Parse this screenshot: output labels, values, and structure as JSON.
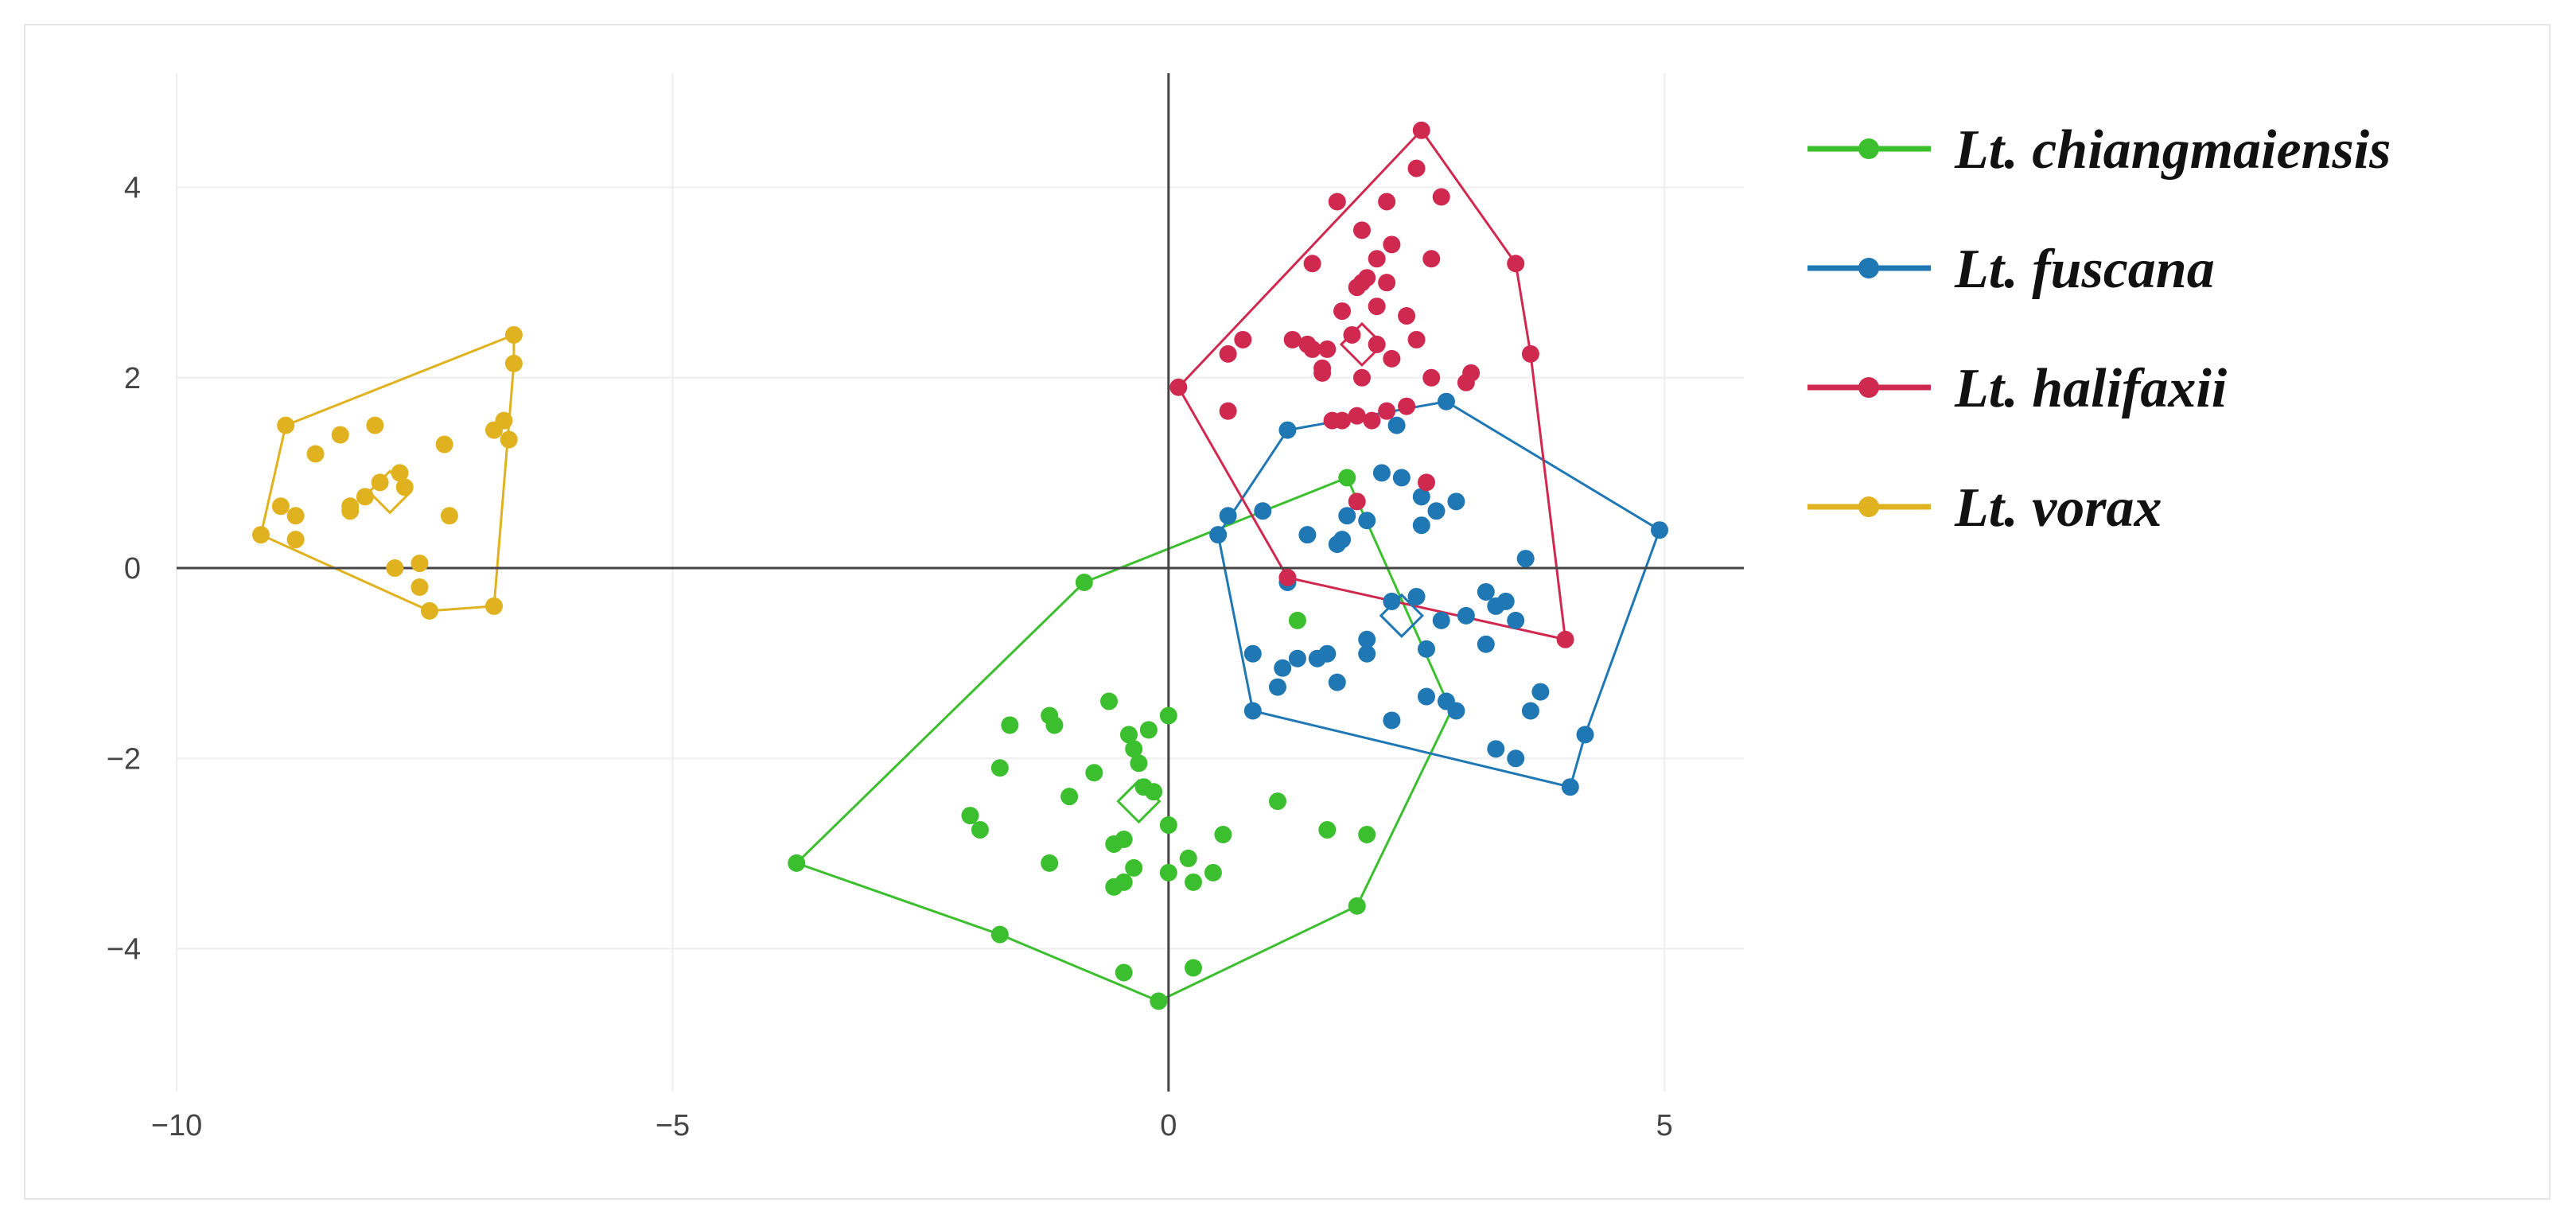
{
  "chart_data": {
    "type": "scatter",
    "title": "",
    "xlabel": "",
    "ylabel": "",
    "xlim": [
      -10,
      5.8
    ],
    "ylim": [
      -5.5,
      5.2
    ],
    "x_ticks": [
      -10,
      -5,
      0,
      5
    ],
    "y_ticks": [
      -4,
      -2,
      0,
      2,
      4
    ],
    "x_tick_labels": [
      "−10",
      "−5",
      "0",
      "5"
    ],
    "y_tick_labels": [
      "−4",
      "−2",
      "0",
      "2",
      "4"
    ],
    "grid": true,
    "zero_lines": true,
    "legend_position": "top-right",
    "series": [
      {
        "name": "Lt. chiangmaiensis",
        "color": "#3cbf2e",
        "points": [
          [
            1.8,
            0.95
          ],
          [
            1.3,
            -0.55
          ],
          [
            -0.85,
            -0.15
          ],
          [
            -2.0,
            -2.6
          ],
          [
            -1.9,
            -2.75
          ],
          [
            -1.7,
            -2.1
          ],
          [
            -1.6,
            -1.65
          ],
          [
            -1.2,
            -1.55
          ],
          [
            -1.15,
            -1.65
          ],
          [
            -1.0,
            -2.4
          ],
          [
            -0.75,
            -2.15
          ],
          [
            -0.6,
            -1.4
          ],
          [
            -0.4,
            -1.75
          ],
          [
            -0.35,
            -1.9
          ],
          [
            -0.3,
            -2.05
          ],
          [
            -0.25,
            -2.3
          ],
          [
            -0.15,
            -2.35
          ],
          [
            0.0,
            -1.55
          ],
          [
            -0.2,
            -1.7
          ],
          [
            -0.55,
            -2.9
          ],
          [
            -0.45,
            -2.85
          ],
          [
            -0.45,
            -3.3
          ],
          [
            -0.35,
            -3.15
          ],
          [
            0.0,
            -2.7
          ],
          [
            0.0,
            -3.2
          ],
          [
            0.2,
            -3.05
          ],
          [
            0.25,
            -3.3
          ],
          [
            0.45,
            -3.2
          ],
          [
            0.55,
            -2.8
          ],
          [
            -1.2,
            -3.1
          ],
          [
            -0.55,
            -3.35
          ],
          [
            1.1,
            -2.45
          ],
          [
            1.6,
            -2.75
          ],
          [
            2.0,
            -2.8
          ],
          [
            -3.75,
            -3.1
          ],
          [
            -1.7,
            -3.85
          ],
          [
            -0.45,
            -4.25
          ],
          [
            0.25,
            -4.2
          ],
          [
            -0.1,
            -4.55
          ],
          [
            1.9,
            -3.55
          ]
        ],
        "hull": [
          [
            1.8,
            0.95
          ],
          [
            2.85,
            -1.5
          ],
          [
            1.9,
            -3.55
          ],
          [
            -0.1,
            -4.55
          ],
          [
            -1.7,
            -3.85
          ],
          [
            -3.75,
            -3.1
          ],
          [
            -0.85,
            -0.15
          ]
        ],
        "centroid": [
          -0.3,
          -2.45
        ]
      },
      {
        "name": "Lt. fuscana",
        "color": "#1f77b4",
        "points": [
          [
            2.8,
            1.75
          ],
          [
            2.3,
            1.5
          ],
          [
            1.2,
            1.45
          ],
          [
            0.5,
            0.35
          ],
          [
            0.6,
            0.55
          ],
          [
            0.95,
            0.6
          ],
          [
            1.4,
            0.35
          ],
          [
            1.7,
            0.25
          ],
          [
            1.8,
            0.55
          ],
          [
            2.0,
            0.5
          ],
          [
            2.15,
            1.0
          ],
          [
            2.35,
            0.95
          ],
          [
            2.55,
            0.75
          ],
          [
            2.7,
            0.6
          ],
          [
            2.55,
            0.45
          ],
          [
            2.9,
            0.7
          ],
          [
            1.75,
            0.3
          ],
          [
            1.2,
            -0.15
          ],
          [
            0.85,
            -0.9
          ],
          [
            1.15,
            -1.05
          ],
          [
            1.3,
            -0.95
          ],
          [
            1.5,
            -0.95
          ],
          [
            1.6,
            -0.9
          ],
          [
            1.1,
            -1.25
          ],
          [
            1.7,
            -1.2
          ],
          [
            2.0,
            -0.9
          ],
          [
            2.0,
            -0.75
          ],
          [
            2.25,
            -0.35
          ],
          [
            2.5,
            -0.3
          ],
          [
            2.75,
            -0.55
          ],
          [
            3.0,
            -0.5
          ],
          [
            3.2,
            -0.25
          ],
          [
            3.3,
            -0.4
          ],
          [
            3.2,
            -0.8
          ],
          [
            3.5,
            -0.55
          ],
          [
            3.4,
            -0.35
          ],
          [
            3.6,
            0.1
          ],
          [
            2.6,
            -0.85
          ],
          [
            2.6,
            -1.35
          ],
          [
            2.8,
            -1.4
          ],
          [
            2.9,
            -1.5
          ],
          [
            3.3,
            -1.9
          ],
          [
            3.5,
            -2.0
          ],
          [
            3.65,
            -1.5
          ],
          [
            3.75,
            -1.3
          ],
          [
            4.2,
            -1.75
          ],
          [
            4.05,
            -2.3
          ],
          [
            4.95,
            0.4
          ],
          [
            0.85,
            -1.5
          ],
          [
            2.25,
            -1.6
          ]
        ],
        "hull": [
          [
            2.8,
            1.75
          ],
          [
            4.95,
            0.4
          ],
          [
            4.2,
            -1.75
          ],
          [
            4.05,
            -2.3
          ],
          [
            0.85,
            -1.5
          ],
          [
            0.5,
            0.35
          ],
          [
            1.2,
            1.45
          ]
        ],
        "centroid": [
          2.35,
          -0.5
        ]
      },
      {
        "name": "Lt. halifaxii",
        "color": "#d0294f",
        "points": [
          [
            2.55,
            4.6
          ],
          [
            2.5,
            4.2
          ],
          [
            2.75,
            3.9
          ],
          [
            2.2,
            3.85
          ],
          [
            1.7,
            3.85
          ],
          [
            1.95,
            3.55
          ],
          [
            2.25,
            3.4
          ],
          [
            2.1,
            3.25
          ],
          [
            1.45,
            3.2
          ],
          [
            1.95,
            3.0
          ],
          [
            1.9,
            2.95
          ],
          [
            2.0,
            3.05
          ],
          [
            2.2,
            3.0
          ],
          [
            2.65,
            3.25
          ],
          [
            1.75,
            2.7
          ],
          [
            2.1,
            2.75
          ],
          [
            2.4,
            2.65
          ],
          [
            2.5,
            2.4
          ],
          [
            1.25,
            2.4
          ],
          [
            1.4,
            2.35
          ],
          [
            1.45,
            2.3
          ],
          [
            1.6,
            2.3
          ],
          [
            1.85,
            2.45
          ],
          [
            2.1,
            2.35
          ],
          [
            2.25,
            2.2
          ],
          [
            1.55,
            2.05
          ],
          [
            1.55,
            2.1
          ],
          [
            1.95,
            2.0
          ],
          [
            2.65,
            2.0
          ],
          [
            3.05,
            2.05
          ],
          [
            3.0,
            1.95
          ],
          [
            0.75,
            2.4
          ],
          [
            0.6,
            2.25
          ],
          [
            0.1,
            1.9
          ],
          [
            0.6,
            1.65
          ],
          [
            1.65,
            1.55
          ],
          [
            1.75,
            1.55
          ],
          [
            1.9,
            1.6
          ],
          [
            2.05,
            1.55
          ],
          [
            2.2,
            1.65
          ],
          [
            2.4,
            1.7
          ],
          [
            3.5,
            3.2
          ],
          [
            3.65,
            2.25
          ],
          [
            2.6,
            0.9
          ],
          [
            1.9,
            0.7
          ],
          [
            4.0,
            -0.75
          ],
          [
            1.2,
            -0.1
          ]
        ],
        "hull": [
          [
            2.55,
            4.6
          ],
          [
            3.5,
            3.2
          ],
          [
            3.65,
            2.25
          ],
          [
            4.0,
            -0.75
          ],
          [
            1.2,
            -0.1
          ],
          [
            0.1,
            1.9
          ]
        ],
        "centroid": [
          1.95,
          2.35
        ]
      },
      {
        "name": "Lt. vorax",
        "color": "#e0b21f",
        "points": [
          [
            -6.6,
            2.45
          ],
          [
            -6.6,
            2.15
          ],
          [
            -8.9,
            1.5
          ],
          [
            -8.6,
            1.2
          ],
          [
            -8.35,
            1.4
          ],
          [
            -8.0,
            1.5
          ],
          [
            -6.8,
            1.45
          ],
          [
            -6.7,
            1.55
          ],
          [
            -6.65,
            1.35
          ],
          [
            -7.3,
            1.3
          ],
          [
            -7.75,
            1.0
          ],
          [
            -7.7,
            0.85
          ],
          [
            -7.95,
            0.9
          ],
          [
            -8.1,
            0.75
          ],
          [
            -8.25,
            0.65
          ],
          [
            -8.25,
            0.6
          ],
          [
            -8.95,
            0.65
          ],
          [
            -8.8,
            0.55
          ],
          [
            -8.8,
            0.3
          ],
          [
            -9.15,
            0.35
          ],
          [
            -7.25,
            0.55
          ],
          [
            -7.8,
            0.0
          ],
          [
            -7.55,
            0.05
          ],
          [
            -7.55,
            -0.2
          ],
          [
            -7.45,
            -0.45
          ],
          [
            -6.8,
            -0.4
          ]
        ],
        "hull": [
          [
            -6.6,
            2.45
          ],
          [
            -6.6,
            2.15
          ],
          [
            -6.8,
            -0.4
          ],
          [
            -7.45,
            -0.45
          ],
          [
            -9.15,
            0.35
          ],
          [
            -8.9,
            1.5
          ]
        ],
        "centroid": [
          -7.85,
          0.8
        ]
      }
    ]
  }
}
